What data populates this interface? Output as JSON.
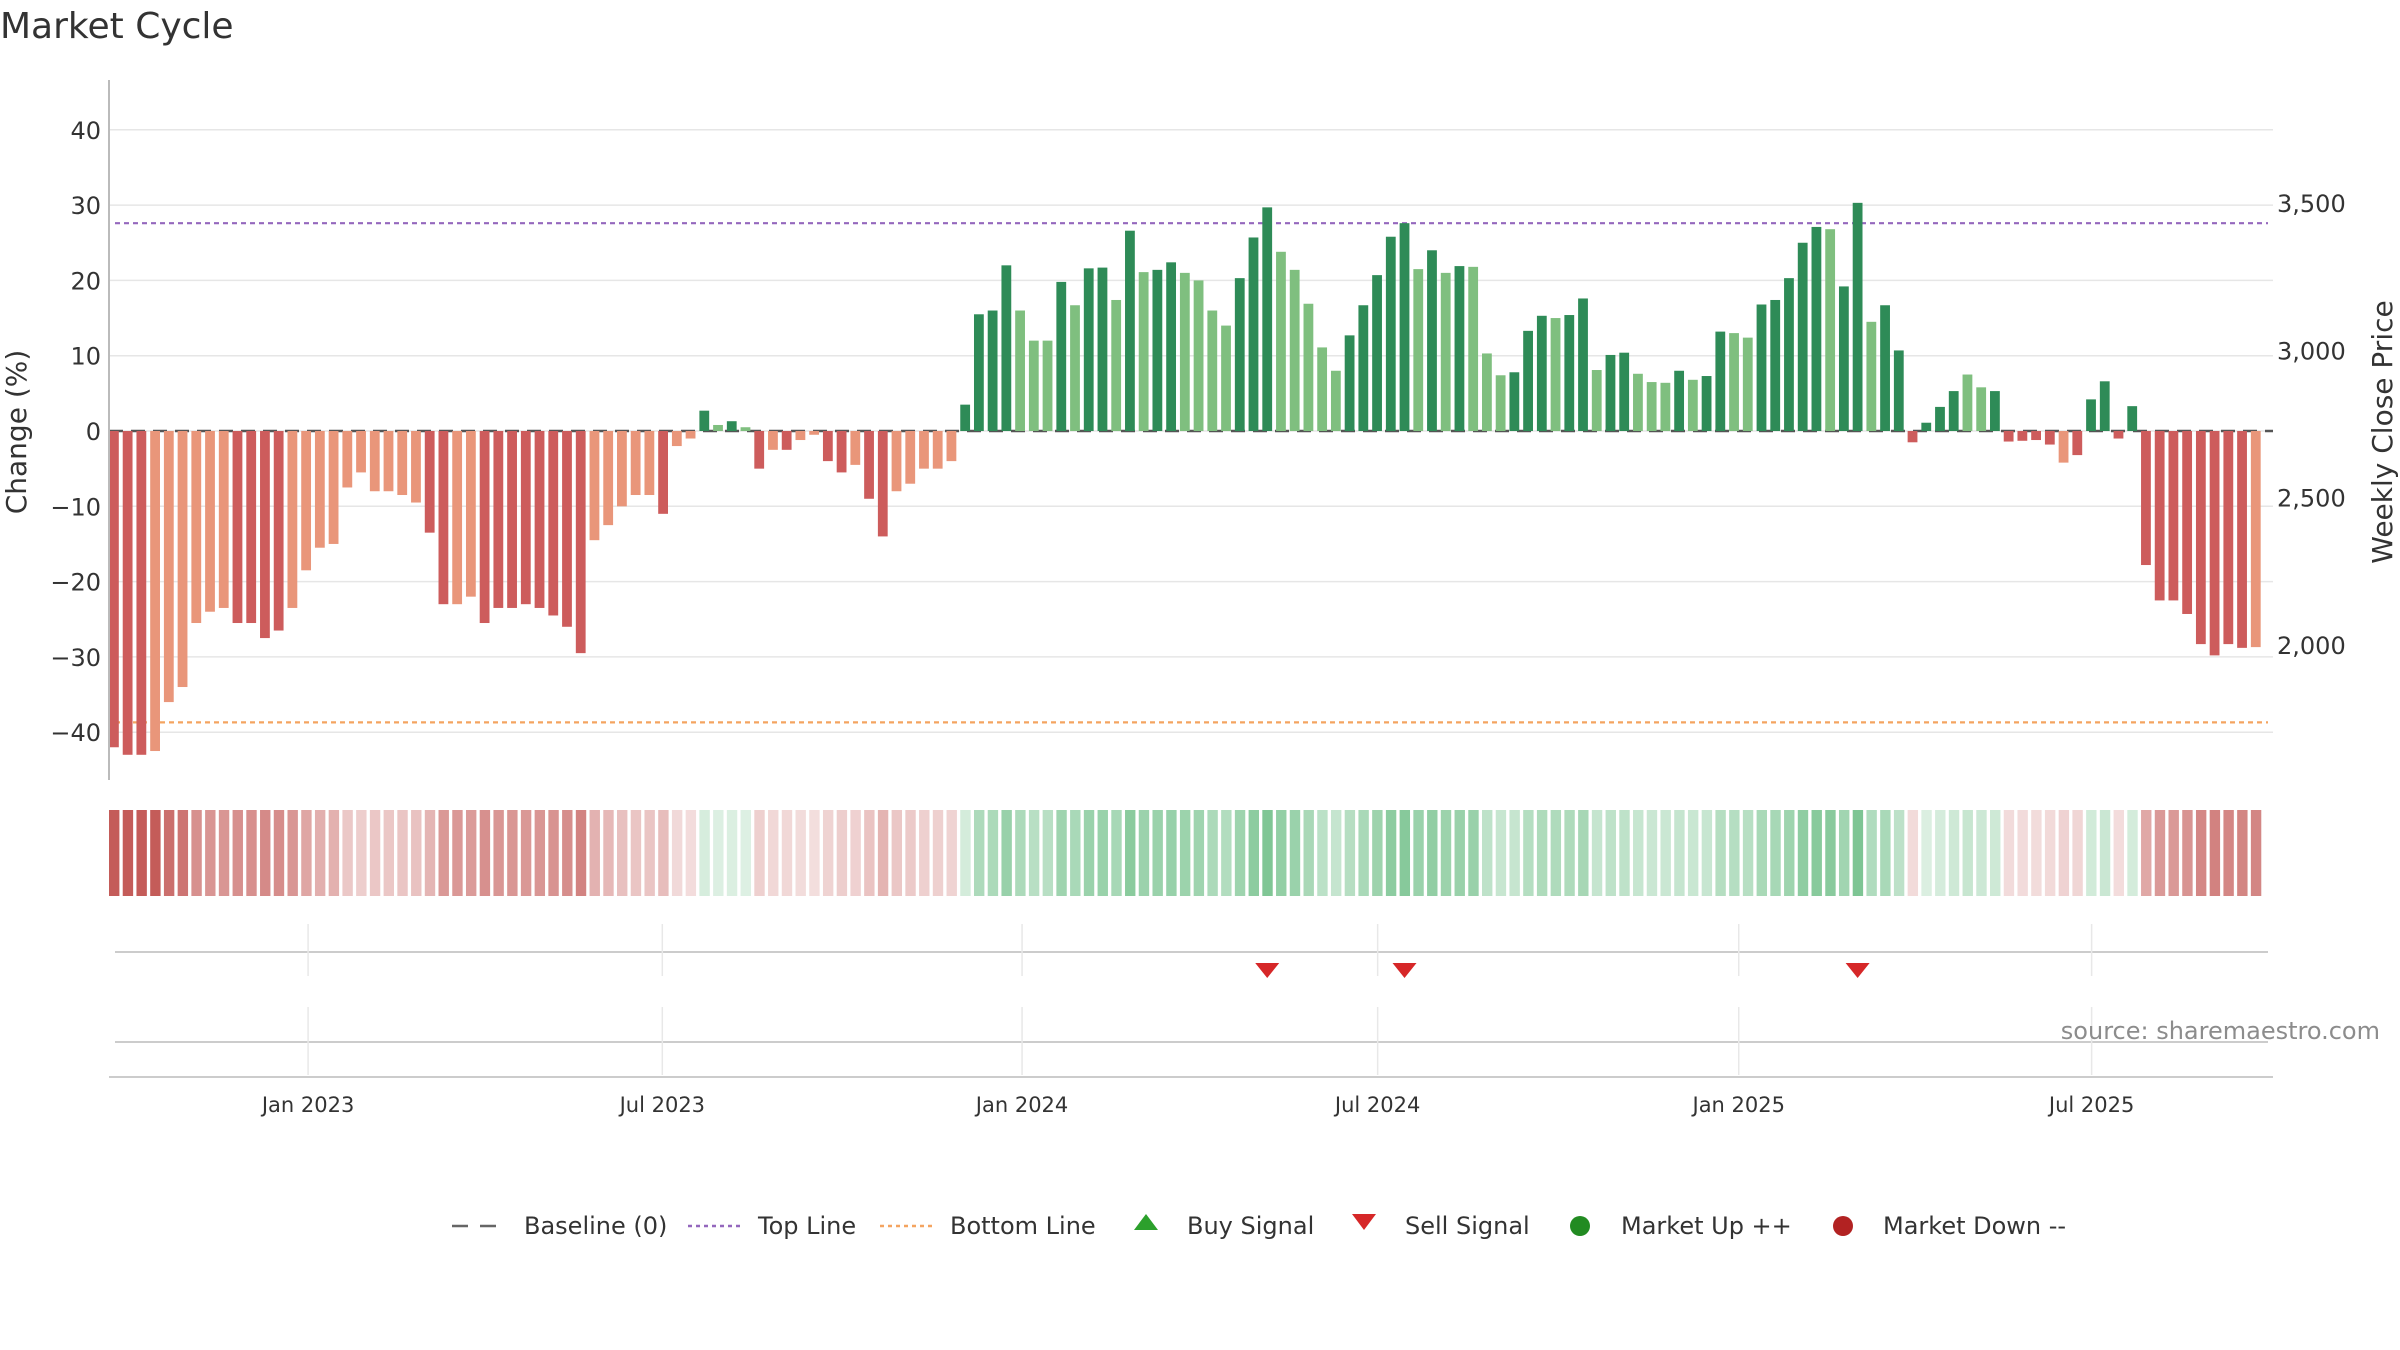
{
  "title": "Market Cycle",
  "source": "source: sharemaestro.com",
  "colors": {
    "up_strong": "#2e8b57",
    "up_light": "#7fbf7f",
    "down_strong": "#cd5c5c",
    "down_light": "#e9967a",
    "top_line": "#9467bd",
    "bottom_line": "#f4a460",
    "baseline": "#555555",
    "buy": "#2ca02c",
    "sell": "#d62728",
    "market_up": "#228b22",
    "market_down": "#b22222"
  },
  "legend": [
    {
      "label": "Baseline (0)",
      "icon": "dash-line-icon"
    },
    {
      "label": "Top Line",
      "icon": "dotted-line-purple-icon"
    },
    {
      "label": "Bottom Line",
      "icon": "dotted-line-orange-icon"
    },
    {
      "label": "Buy Signal",
      "icon": "triangle-up-icon"
    },
    {
      "label": "Sell Signal",
      "icon": "triangle-down-icon"
    },
    {
      "label": "Market Up ++",
      "icon": "dot-green-icon"
    },
    {
      "label": "Market Down --",
      "icon": "dot-red-icon"
    }
  ],
  "chart_data": {
    "type": "bar",
    "ylabel_left": "Change (%)",
    "ylabel_right": "Weekly Close Price",
    "ylim": [
      -46,
      47
    ],
    "y_ticks": [
      "40",
      "30",
      "20",
      "10",
      "0",
      "−10",
      "−20",
      "−30",
      "−40"
    ],
    "y_tick_values": [
      40,
      30,
      20,
      10,
      0,
      -10,
      -20,
      -30,
      -40
    ],
    "right_ticks": [
      "3,500",
      "3,000",
      "2,500",
      "2,000"
    ],
    "right_tick_values": [
      3500,
      3000,
      2500,
      2000
    ],
    "top_line": 27.6,
    "bottom_line": -38.7,
    "x_ticks": [
      "Jan 2023",
      "Jul 2023",
      "Jan 2024",
      "Jul 2024",
      "Jan 2025",
      "Jul 2025"
    ],
    "x_tick_bar_index": [
      14.5,
      40.3,
      66.5,
      92.4,
      118.7,
      144.4
    ],
    "values": [
      -42,
      -43,
      -43,
      -42.5,
      -36,
      -34,
      -25.5,
      -24,
      -23.5,
      -25.5,
      -25.5,
      -27.5,
      -26.5,
      -23.5,
      -18.5,
      -15.5,
      -15,
      -7.5,
      -5.5,
      -8,
      -8,
      -8.5,
      -9.5,
      -13.5,
      -23,
      -23,
      -22,
      -25.5,
      -23.5,
      -23.5,
      -23,
      -23.5,
      -24.5,
      -26,
      -29.5,
      -14.5,
      -12.5,
      -10,
      -8.5,
      -8.5,
      -11,
      -2,
      -1,
      2.7,
      0.8,
      1.3,
      0.5,
      -5,
      -2.5,
      -2.5,
      -1.2,
      -0.5,
      -4,
      -5.5,
      -4.5,
      -9,
      -14,
      -8,
      -7,
      -5,
      -5,
      -4,
      3.5,
      15.5,
      16,
      22,
      16,
      12,
      12,
      19.8,
      16.7,
      21.6,
      21.7,
      17.4,
      26.6,
      21.1,
      21.4,
      22.4,
      21,
      20,
      16,
      14,
      20.3,
      25.7,
      29.7,
      23.8,
      21.4,
      16.9,
      11.1,
      8,
      12.7,
      16.7,
      20.7,
      25.8,
      27.6,
      21.5,
      24,
      21,
      21.9,
      21.8,
      10.3,
      7.4,
      7.8,
      13.3,
      15.3,
      15,
      15.4,
      17.6,
      8.1,
      10.1,
      10.4,
      7.6,
      6.5,
      6.4,
      8,
      6.8,
      7.3,
      13.2,
      13,
      12.4,
      16.8,
      17.4,
      20.3,
      25,
      27.1,
      26.8,
      19.2,
      30.3,
      14.5,
      16.7,
      10.7,
      -1.5,
      1.1,
      3.2,
      5.3,
      7.5,
      5.8,
      5.3,
      -1.4,
      -1.3,
      -1.2,
      -1.8,
      -4.2,
      -3.2,
      4.2,
      6.6,
      -1,
      3.3,
      -17.8,
      -22.5,
      -22.5,
      -24.3,
      -28.3,
      -29.8,
      -28.3,
      -28.8,
      -28.7
    ],
    "shade": [
      1,
      1,
      1,
      0,
      0,
      0,
      0,
      0,
      0,
      1,
      1,
      1,
      1,
      0,
      0,
      0,
      0,
      0,
      0,
      0,
      0,
      0,
      0,
      1,
      1,
      0,
      0,
      1,
      1,
      1,
      1,
      1,
      1,
      1,
      1,
      0,
      0,
      0,
      0,
      0,
      1,
      0,
      0,
      1,
      0,
      1,
      0,
      1,
      0,
      1,
      0,
      0,
      1,
      1,
      0,
      1,
      1,
      0,
      0,
      0,
      0,
      0,
      1,
      1,
      1,
      1,
      0,
      0,
      0,
      1,
      0,
      1,
      1,
      0,
      1,
      0,
      1,
      1,
      0,
      0,
      0,
      0,
      1,
      1,
      1,
      0,
      0,
      0,
      0,
      0,
      1,
      1,
      1,
      1,
      1,
      0,
      1,
      0,
      1,
      0,
      0,
      0,
      1,
      1,
      1,
      0,
      1,
      1,
      0,
      1,
      1,
      0,
      0,
      0,
      1,
      0,
      1,
      1,
      0,
      0,
      1,
      1,
      1,
      1,
      1,
      0,
      1,
      1,
      0,
      1,
      1,
      1,
      1,
      1,
      1,
      0,
      0,
      1,
      1,
      1,
      1,
      1,
      0,
      1,
      1,
      1,
      1,
      1,
      1,
      1,
      1,
      1,
      1,
      1,
      1,
      1,
      0
    ],
    "sell_signal_bar_index": [
      84,
      94,
      127
    ],
    "buy_signal_bar_index": [],
    "grid": true
  }
}
